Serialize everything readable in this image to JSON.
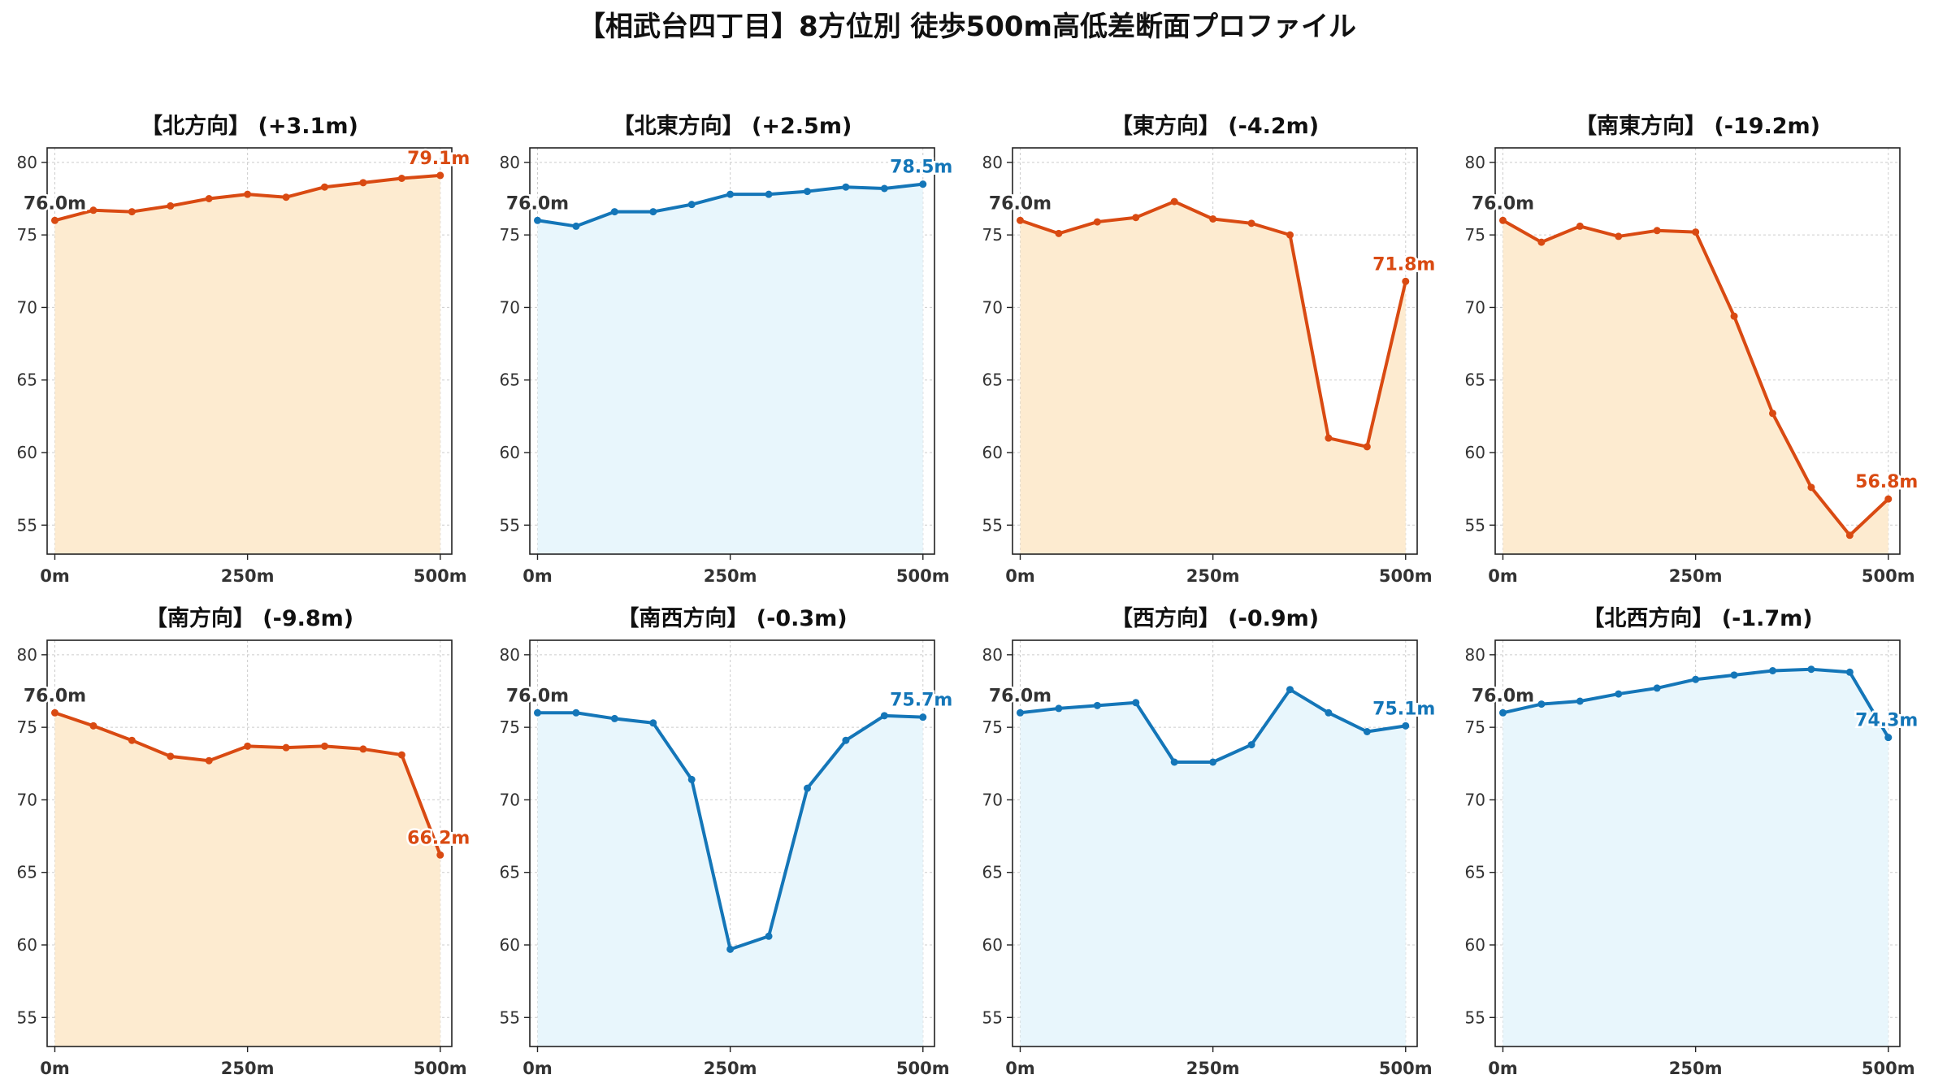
{
  "title": "【相武台四丁目】8方位別 徒歩500m高低差断面プロファイル",
  "colors": {
    "up_line": "#d94a12",
    "up_fill": "#fdebd0",
    "down_line": "#1476b8",
    "down_fill": "#e8f6fc",
    "start_label": "#333333",
    "grid": "#cccccc",
    "tick_label": "#333333"
  },
  "chart_data": [
    {
      "type": "area",
      "title": "【北方向】 (+3.1m)",
      "style": "orange",
      "x": [
        0,
        50,
        100,
        150,
        200,
        250,
        300,
        350,
        400,
        450,
        500
      ],
      "y": [
        76.0,
        76.7,
        76.6,
        77.0,
        77.5,
        77.8,
        77.6,
        78.3,
        78.6,
        78.9,
        79.1
      ],
      "start_label": "76.0m",
      "end_label": "79.1m",
      "xticks": [
        0,
        250,
        500
      ],
      "xtick_labels": [
        "0m",
        "250m",
        "500m"
      ],
      "yticks": [
        55,
        60,
        65,
        70,
        75,
        80
      ],
      "ylim": [
        53,
        81
      ],
      "xlim": [
        -10,
        515
      ],
      "grid": true
    },
    {
      "type": "area",
      "title": "【北東方向】 (+2.5m)",
      "style": "blue",
      "x": [
        0,
        50,
        100,
        150,
        200,
        250,
        300,
        350,
        400,
        450,
        500
      ],
      "y": [
        76.0,
        75.6,
        76.6,
        76.6,
        77.1,
        77.8,
        77.8,
        78.0,
        78.3,
        78.2,
        78.5
      ],
      "start_label": "76.0m",
      "end_label": "78.5m",
      "xticks": [
        0,
        250,
        500
      ],
      "xtick_labels": [
        "0m",
        "250m",
        "500m"
      ],
      "yticks": [
        55,
        60,
        65,
        70,
        75,
        80
      ],
      "ylim": [
        53,
        81
      ],
      "xlim": [
        -10,
        515
      ],
      "grid": true
    },
    {
      "type": "area",
      "title": "【東方向】 (-4.2m)",
      "style": "orange",
      "x": [
        0,
        50,
        100,
        150,
        200,
        250,
        300,
        350,
        400,
        450,
        500
      ],
      "y": [
        76.0,
        75.1,
        75.9,
        76.2,
        77.3,
        76.1,
        75.8,
        75.0,
        61.0,
        60.4,
        71.8
      ],
      "start_label": "76.0m",
      "end_label": "71.8m",
      "xticks": [
        0,
        250,
        500
      ],
      "xtick_labels": [
        "0m",
        "250m",
        "500m"
      ],
      "yticks": [
        55,
        60,
        65,
        70,
        75,
        80
      ],
      "ylim": [
        53,
        81
      ],
      "xlim": [
        -10,
        515
      ],
      "grid": true
    },
    {
      "type": "area",
      "title": "【南東方向】 (-19.2m)",
      "style": "orange",
      "x": [
        0,
        50,
        100,
        150,
        200,
        250,
        300,
        350,
        400,
        450,
        500
      ],
      "y": [
        76.0,
        74.5,
        75.6,
        74.9,
        75.3,
        75.2,
        69.4,
        62.7,
        57.6,
        54.3,
        56.8
      ],
      "start_label": "76.0m",
      "end_label": "56.8m",
      "xticks": [
        0,
        250,
        500
      ],
      "xtick_labels": [
        "0m",
        "250m",
        "500m"
      ],
      "yticks": [
        55,
        60,
        65,
        70,
        75,
        80
      ],
      "ylim": [
        53,
        81
      ],
      "xlim": [
        -10,
        515
      ],
      "grid": true
    },
    {
      "type": "area",
      "title": "【南方向】 (-9.8m)",
      "style": "orange",
      "x": [
        0,
        50,
        100,
        150,
        200,
        250,
        300,
        350,
        400,
        450,
        500
      ],
      "y": [
        76.0,
        75.1,
        74.1,
        73.0,
        72.7,
        73.7,
        73.6,
        73.7,
        73.5,
        73.1,
        66.2
      ],
      "start_label": "76.0m",
      "end_label": "66.2m",
      "xticks": [
        0,
        250,
        500
      ],
      "xtick_labels": [
        "0m",
        "250m",
        "500m"
      ],
      "yticks": [
        55,
        60,
        65,
        70,
        75,
        80
      ],
      "ylim": [
        53,
        81
      ],
      "xlim": [
        -10,
        515
      ],
      "grid": true
    },
    {
      "type": "area",
      "title": "【南西方向】 (-0.3m)",
      "style": "blue",
      "x": [
        0,
        50,
        100,
        150,
        200,
        250,
        300,
        350,
        400,
        450,
        500
      ],
      "y": [
        76.0,
        76.0,
        75.6,
        75.3,
        71.4,
        59.7,
        60.6,
        70.8,
        74.1,
        75.8,
        75.7
      ],
      "start_label": "76.0m",
      "end_label": "75.7m",
      "xticks": [
        0,
        250,
        500
      ],
      "xtick_labels": [
        "0m",
        "250m",
        "500m"
      ],
      "yticks": [
        55,
        60,
        65,
        70,
        75,
        80
      ],
      "ylim": [
        53,
        81
      ],
      "xlim": [
        -10,
        515
      ],
      "grid": true
    },
    {
      "type": "area",
      "title": "【西方向】 (-0.9m)",
      "style": "blue",
      "x": [
        0,
        50,
        100,
        150,
        200,
        250,
        300,
        350,
        400,
        450,
        500
      ],
      "y": [
        76.0,
        76.3,
        76.5,
        76.7,
        72.6,
        72.6,
        73.8,
        77.6,
        76.0,
        74.7,
        75.1
      ],
      "start_label": "76.0m",
      "end_label": "75.1m",
      "xticks": [
        0,
        250,
        500
      ],
      "xtick_labels": [
        "0m",
        "250m",
        "500m"
      ],
      "yticks": [
        55,
        60,
        65,
        70,
        75,
        80
      ],
      "ylim": [
        53,
        81
      ],
      "xlim": [
        -10,
        515
      ],
      "grid": true
    },
    {
      "type": "area",
      "title": "【北西方向】 (-1.7m)",
      "style": "blue",
      "x": [
        0,
        50,
        100,
        150,
        200,
        250,
        300,
        350,
        400,
        450,
        500
      ],
      "y": [
        76.0,
        76.6,
        76.8,
        77.3,
        77.7,
        78.3,
        78.6,
        78.9,
        79.0,
        78.8,
        74.3
      ],
      "start_label": "76.0m",
      "end_label": "74.3m",
      "xticks": [
        0,
        250,
        500
      ],
      "xtick_labels": [
        "0m",
        "250m",
        "500m"
      ],
      "yticks": [
        55,
        60,
        65,
        70,
        75,
        80
      ],
      "ylim": [
        53,
        81
      ],
      "xlim": [
        -10,
        515
      ],
      "grid": true
    }
  ]
}
